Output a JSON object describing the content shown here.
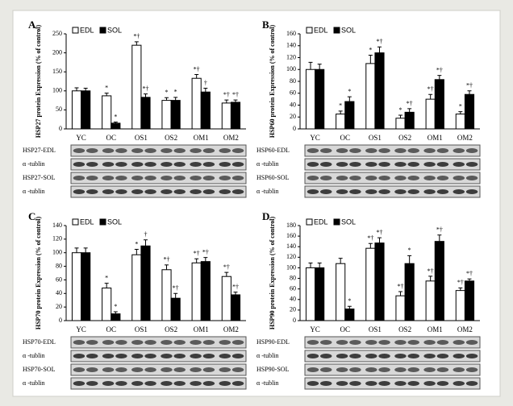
{
  "chart_data": [
    {
      "type": "bar",
      "panel": "A",
      "ylabel": "HSP27 protein Expression (% of control)",
      "categories": [
        "YC",
        "OC",
        "OS1",
        "OS2",
        "OM1",
        "OM2"
      ],
      "ylim": [
        0,
        250
      ],
      "yticks": [
        0,
        50,
        100,
        150,
        200,
        250
      ],
      "series": [
        {
          "name": "EDL",
          "color": "#ffffff",
          "values": [
            100,
            87,
            220,
            75,
            133,
            68
          ],
          "errors": [
            8,
            7,
            9,
            7,
            10,
            8
          ],
          "significance": [
            null,
            "*",
            "*†",
            "*",
            "*†",
            "*†"
          ]
        },
        {
          "name": "SOL",
          "color": "#000000",
          "values": [
            100,
            15,
            83,
            75,
            97,
            70
          ],
          "errors": [
            7,
            3,
            9,
            8,
            10,
            6
          ],
          "significance": [
            null,
            "*",
            "*†",
            "*",
            "†",
            "*†"
          ]
        }
      ],
      "blot_labels": [
        "HSP27-EDL",
        "α -tublin",
        "HSP27-SOL",
        "α -tublin"
      ]
    },
    {
      "type": "bar",
      "panel": "B",
      "ylabel": "HSP60 protein Expression (% of control)",
      "categories": [
        "YC",
        "OC",
        "OS1",
        "OS2",
        "OM1",
        "OM2"
      ],
      "ylim": [
        0,
        160
      ],
      "yticks": [
        0,
        20,
        40,
        60,
        80,
        100,
        120,
        140,
        160
      ],
      "series": [
        {
          "name": "EDL",
          "color": "#ffffff",
          "values": [
            100,
            25,
            110,
            18,
            50,
            25
          ],
          "errors": [
            12,
            5,
            14,
            5,
            8,
            4
          ],
          "significance": [
            null,
            "*",
            "*",
            "*",
            "*†",
            "*"
          ]
        },
        {
          "name": "SOL",
          "color": "#000000",
          "values": [
            100,
            46,
            128,
            28,
            83,
            58
          ],
          "errors": [
            9,
            8,
            10,
            6,
            7,
            6
          ],
          "significance": [
            null,
            "*",
            "*†",
            "*†",
            "*†",
            "*†"
          ]
        }
      ],
      "blot_labels": [
        "HSP60-EDL",
        "α -tublin",
        "HSP60-SOL",
        "α -tublin"
      ]
    },
    {
      "type": "bar",
      "panel": "C",
      "ylabel": "HSP70 protein Expression (% of control)",
      "categories": [
        "YC",
        "OC",
        "OS1",
        "OS2",
        "OM1",
        "OM2"
      ],
      "ylim": [
        0,
        140
      ],
      "yticks": [
        0,
        20,
        40,
        60,
        80,
        100,
        120,
        140
      ],
      "series": [
        {
          "name": "EDL",
          "color": "#ffffff",
          "values": [
            100,
            48,
            97,
            75,
            85,
            65
          ],
          "errors": [
            7,
            7,
            8,
            7,
            6,
            6
          ],
          "significance": [
            null,
            "*",
            "*",
            "*†",
            "*†",
            "*†"
          ]
        },
        {
          "name": "SOL",
          "color": "#000000",
          "values": [
            100,
            10,
            110,
            33,
            87,
            38
          ],
          "errors": [
            7,
            3,
            9,
            7,
            6,
            4
          ],
          "significance": [
            null,
            "*",
            "†",
            "*†",
            "*†",
            "*†"
          ]
        }
      ],
      "blot_labels": [
        "HSP70-EDL",
        "α -tublin",
        "HSP70-SOL",
        "α -tublin"
      ]
    },
    {
      "type": "bar",
      "panel": "D",
      "ylabel": "HSP90 protein Expression (% of control)",
      "categories": [
        "YC",
        "OC",
        "OS1",
        "OS2",
        "OM1",
        "OM2"
      ],
      "ylim": [
        0,
        180
      ],
      "yticks": [
        0,
        20,
        40,
        60,
        80,
        100,
        120,
        140,
        160,
        180
      ],
      "series": [
        {
          "name": "EDL",
          "color": "#ffffff",
          "values": [
            100,
            108,
            137,
            47,
            75,
            57
          ],
          "errors": [
            9,
            10,
            9,
            8,
            9,
            5
          ],
          "significance": [
            null,
            null,
            "*†",
            "*†",
            "*†",
            "*†"
          ]
        },
        {
          "name": "SOL",
          "color": "#000000",
          "values": [
            100,
            22,
            147,
            108,
            150,
            75
          ],
          "errors": [
            9,
            5,
            10,
            15,
            12,
            4
          ],
          "significance": [
            null,
            "*",
            "*†",
            "*",
            "*†",
            "*†"
          ]
        }
      ],
      "blot_labels": [
        "HSP90-EDL",
        "α -tublin",
        "HSP90-SOL",
        "α -tublin"
      ]
    }
  ]
}
